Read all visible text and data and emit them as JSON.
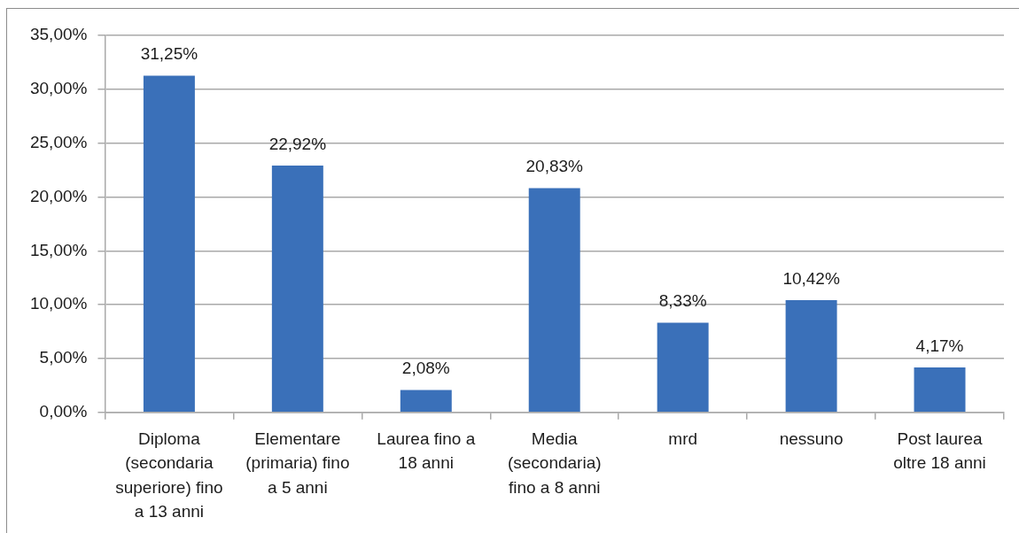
{
  "chart_data": {
    "type": "bar",
    "categories": [
      "Diploma (secondaria superiore) fino a 13 anni",
      "Elementare (primaria) fino a 5 anni",
      "Laurea fino a 18 anni",
      "Media (secondaria) fino a 8 anni",
      "mrd",
      "nessuno",
      "Post laurea oltre 18 anni"
    ],
    "values": [
      31.25,
      22.92,
      2.08,
      20.83,
      8.33,
      10.42,
      4.17
    ],
    "value_labels": [
      "31,25%",
      "22,92%",
      "2,08%",
      "20,83%",
      "8,33%",
      "10,42%",
      "4,17%"
    ],
    "color": "#3a70b9",
    "ylim": [
      0,
      35
    ],
    "yticks": [
      {
        "value": 0,
        "label": "0,00%"
      },
      {
        "value": 5,
        "label": "5,00%"
      },
      {
        "value": 10,
        "label": "10,00%"
      },
      {
        "value": 15,
        "label": "15,00%"
      },
      {
        "value": 20,
        "label": "20,00%"
      },
      {
        "value": 25,
        "label": "25,00%"
      },
      {
        "value": 30,
        "label": "30,00%"
      },
      {
        "value": 35,
        "label": "35,00%"
      }
    ],
    "grid": "y"
  }
}
